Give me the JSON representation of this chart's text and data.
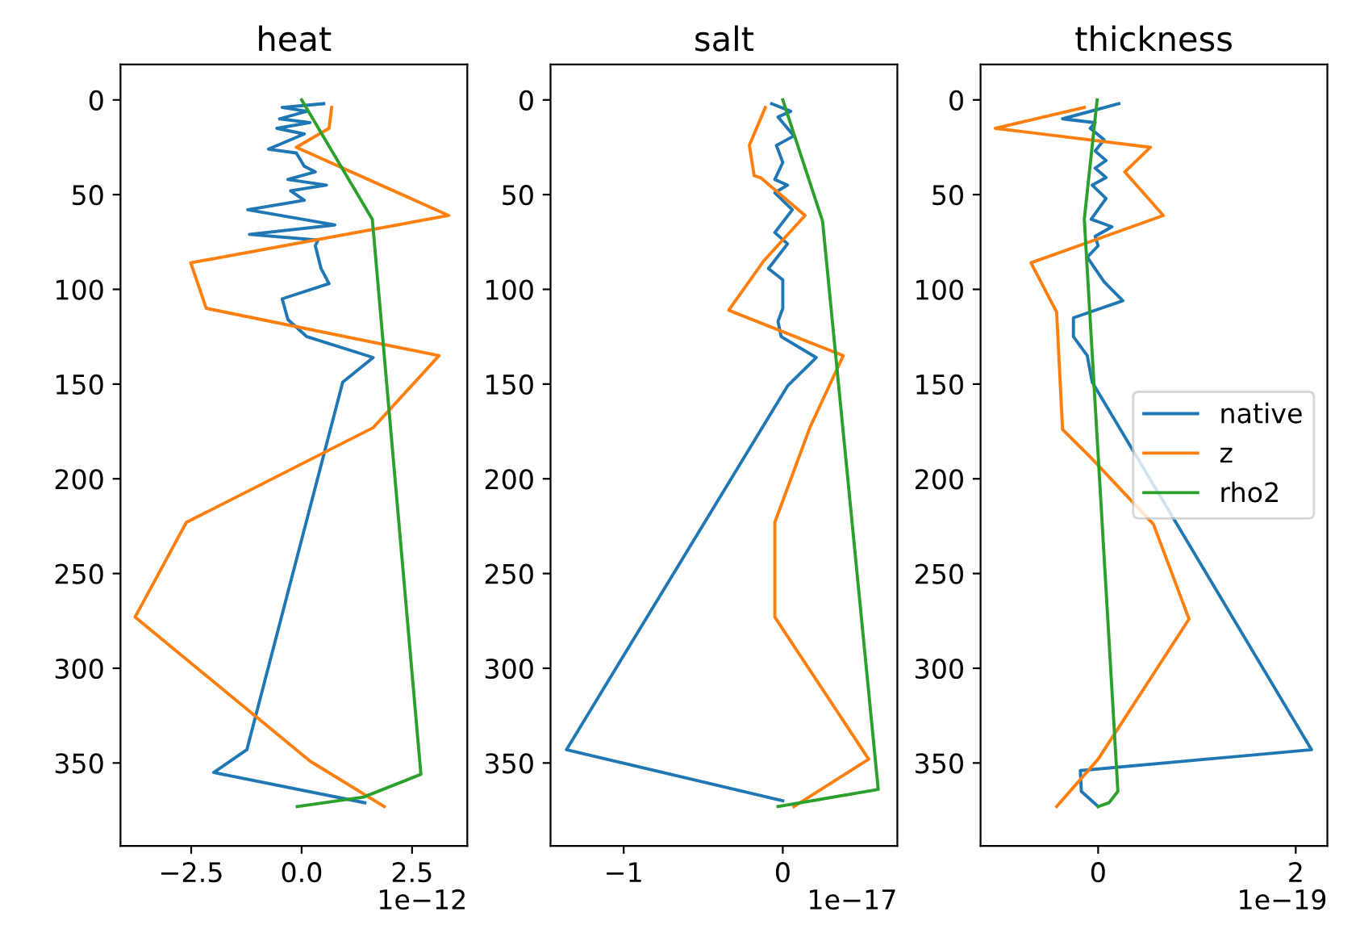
{
  "chart_data": [
    {
      "type": "line",
      "title": "heat",
      "annotations": [
        "1e−12"
      ],
      "xlim": [
        -4.1,
        3.75
      ],
      "xticks": [
        {
          "value": -2.5,
          "label": "−2.5"
        },
        {
          "value": 0,
          "label": "0.0"
        },
        {
          "value": 2.5,
          "label": "2.5"
        }
      ],
      "ylim": [
        393.75,
        -18.75
      ],
      "yticks": [
        0,
        50,
        100,
        150,
        200,
        250,
        300,
        350
      ],
      "grid": false,
      "legend": false,
      "series": [
        {
          "color": "#1f77b4",
          "x": [
            0.5,
            -0.44,
            0.12,
            -0.5,
            0.19,
            -0.56,
            0.06,
            -0.75,
            -0.12,
            0.06,
            0.31,
            -0.31,
            0.56,
            -0.25,
            0.06,
            -1.22,
            0.75,
            -1.18,
            0.37,
            0.31,
            0.44,
            0.62,
            -0.44,
            -0.31,
            0.12,
            1.62,
            0.93,
            -1.24,
            -1.99,
            1.43
          ],
          "values": [
            2,
            4,
            6,
            10,
            12,
            15,
            18,
            26,
            28,
            35,
            38,
            42,
            45,
            48,
            53,
            58,
            66,
            71,
            74,
            77,
            89,
            97,
            105,
            116,
            125,
            136,
            149,
            343,
            355,
            371
          ]
        },
        {
          "color": "#ff7f0e",
          "x": [
            0.68,
            0.62,
            -0.12,
            3.33,
            -2.51,
            -2.16,
            3.11,
            1.62,
            -2.61,
            -3.77,
            0.19,
            1.87
          ],
          "values": [
            4,
            15,
            25,
            61,
            86,
            110,
            135,
            173,
            223,
            273,
            349,
            373
          ]
        },
        {
          "color": "#2ca02c",
          "x": [
            0,
            1.6,
            2.7,
            1.4,
            -0.1
          ],
          "values": [
            0,
            63,
            356,
            368,
            373
          ]
        }
      ]
    },
    {
      "type": "line",
      "title": "salt",
      "annotations": [
        "1e−17"
      ],
      "xlim": [
        -1.46,
        0.72
      ],
      "xticks": [
        {
          "value": -1,
          "label": "−1"
        },
        0
      ],
      "ylim": [
        393.75,
        -18.75
      ],
      "yticks": [
        0,
        50,
        100,
        150,
        200,
        250,
        300,
        350
      ],
      "grid": false,
      "legend": false,
      "series": [
        {
          "color": "#1f77b4",
          "x": [
            -0.07,
            0.05,
            -0.03,
            0.07,
            -0.04,
            0,
            -0.05,
            0.03,
            -0.05,
            0.06,
            -0.05,
            0.03,
            -0.09,
            0,
            0,
            -0.03,
            -0.01,
            0.21,
            0.03,
            -1.36,
            0
          ],
          "values": [
            2,
            6,
            9,
            19,
            24,
            33,
            42,
            45,
            49,
            58,
            70,
            76,
            89,
            95,
            110,
            117,
            125,
            136,
            151,
            343,
            370
          ]
        },
        {
          "color": "#ff7f0e",
          "x": [
            -0.11,
            -0.21,
            -0.18,
            -0.14,
            0.14,
            -0.12,
            -0.34,
            0.38,
            0.17,
            -0.05,
            -0.05,
            0.54,
            0.07
          ],
          "values": [
            4,
            24,
            40,
            41,
            61,
            85,
            111,
            135,
            173,
            223,
            273,
            348,
            373
          ]
        },
        {
          "color": "#2ca02c",
          "x": [
            0,
            0.25,
            0.6,
            -0.03
          ],
          "values": [
            0,
            64,
            364,
            373
          ]
        }
      ]
    },
    {
      "type": "line",
      "title": "thickness",
      "annotations": [
        "1e−19"
      ],
      "xlim": [
        -1.19,
        2.32
      ],
      "xticks": [
        0,
        2
      ],
      "ylim": [
        393.75,
        -18.75
      ],
      "yticks": [
        0,
        50,
        100,
        150,
        200,
        250,
        300,
        350
      ],
      "grid": false,
      "legend": "center right",
      "series": [
        {
          "name": "native",
          "color": "#1f77b4",
          "x": [
            0.21,
            -0.36,
            -0.03,
            -0.08,
            0.06,
            -0.03,
            0.08,
            -0.03,
            0.08,
            -0.06,
            0.08,
            -0.07,
            0.14,
            -0.03,
            0,
            -0.11,
            0.06,
            0.25,
            -0.25,
            -0.25,
            -0.11,
            -0.06,
            2.16,
            -0.18,
            -0.17,
            0
          ],
          "values": [
            2,
            10,
            12,
            15,
            21,
            27,
            32,
            36,
            41,
            45,
            52,
            63,
            67,
            72,
            77,
            83,
            96,
            106,
            115,
            125,
            135,
            149,
            343,
            354,
            365,
            373
          ]
        },
        {
          "name": "z",
          "color": "#ff7f0e",
          "x": [
            -0.14,
            -1.04,
            0.53,
            0.27,
            0.66,
            -0.68,
            -0.42,
            -0.36,
            -0.07,
            0.56,
            0.92,
            0,
            -0.42
          ],
          "values": [
            4,
            15,
            25,
            38,
            61,
            86,
            112,
            174,
            189,
            224,
            274,
            348,
            373
          ]
        },
        {
          "name": "rho2",
          "color": "#2ca02c",
          "x": [
            -0.01,
            -0.14,
            0.2,
            0.11,
            0
          ],
          "values": [
            0,
            63,
            365,
            371,
            373
          ]
        }
      ]
    }
  ]
}
